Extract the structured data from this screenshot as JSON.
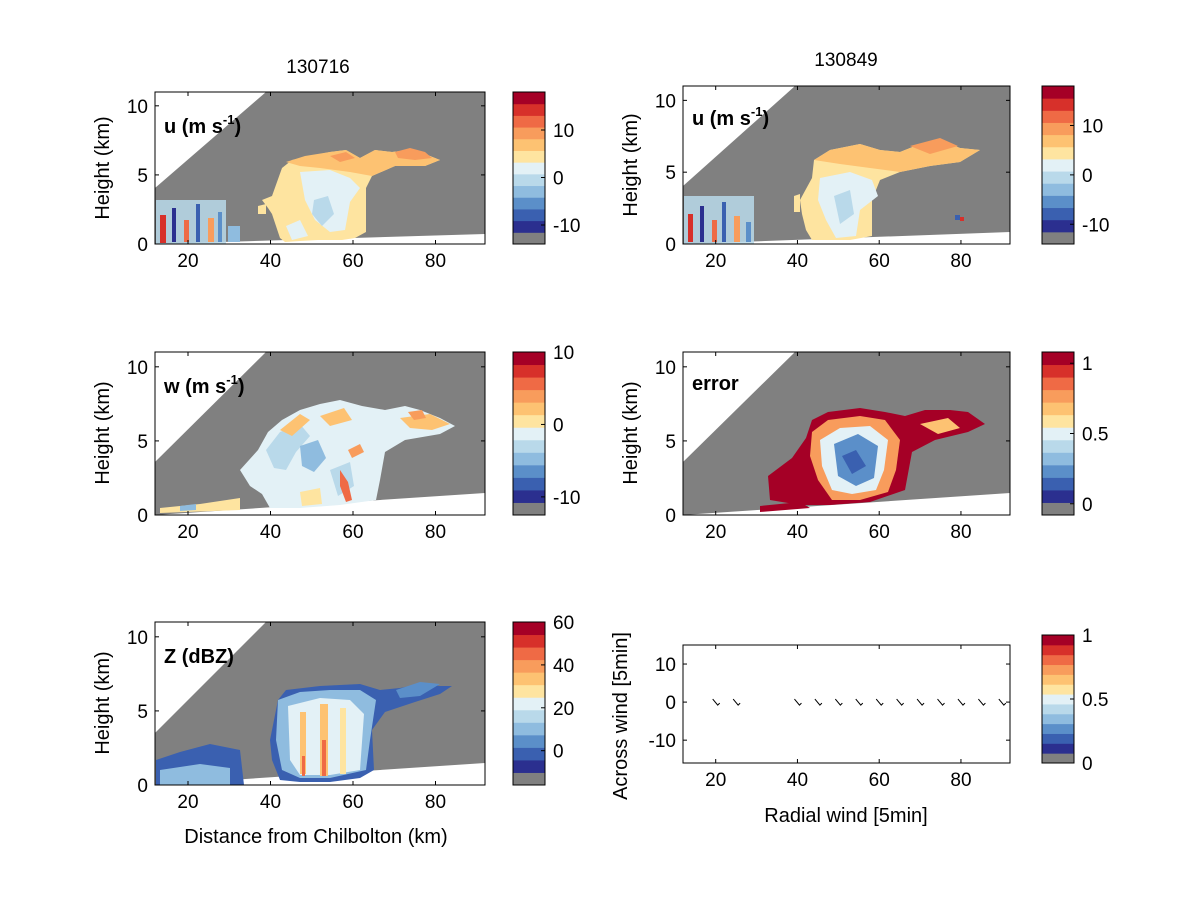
{
  "figure": {
    "titles": [
      "130716",
      "130849"
    ],
    "ylabel_height": "Height (km)",
    "xlabel_distance": "Distance from Chilbolton (km)",
    "panel_labels": {
      "u_prefix": "u (m s",
      "u_exp": "-1",
      "u_suffix": ")",
      "w_prefix": "w (m s",
      "w_exp": "-1",
      "w_suffix": ")",
      "error": "error",
      "z": "Z (dBZ)"
    }
  },
  "colors": {
    "missing_gray": "#808080",
    "colorbar": [
      "#2b2f8f",
      "#3a60b0",
      "#5b8fc9",
      "#8fbcdf",
      "#b9d9ea",
      "#e3f1f6",
      "#fee4a0",
      "#fdc272",
      "#f89c5c",
      "#ef6a45",
      "#d7302a",
      "#a50026"
    ]
  },
  "chart_data": [
    {
      "type": "heatmap",
      "id": "u_130716",
      "title": "130716",
      "ylabel": "Height (km)",
      "xlim": [
        12,
        92
      ],
      "ylim": [
        0,
        11
      ],
      "xticks": [
        20,
        40,
        60,
        80
      ],
      "yticks": [
        0,
        5,
        10
      ],
      "colorbar": {
        "ticks": [
          -10,
          0,
          10
        ],
        "range": [
          -14,
          18
        ],
        "has_missing_band": true
      }
    },
    {
      "type": "heatmap",
      "id": "u_130849",
      "title": "130849",
      "ylabel": "Height (km)",
      "xlim": [
        12,
        92
      ],
      "ylim": [
        0,
        11
      ],
      "xticks": [
        20,
        40,
        60,
        80
      ],
      "yticks": [
        0,
        5,
        10
      ],
      "colorbar": {
        "ticks": [
          -10,
          0,
          10
        ],
        "range": [
          -14,
          18
        ],
        "has_missing_band": true
      }
    },
    {
      "type": "heatmap",
      "id": "w_130716",
      "ylabel": "Height (km)",
      "xlim": [
        12,
        92
      ],
      "ylim": [
        0,
        11
      ],
      "xticks": [
        20,
        40,
        60,
        80
      ],
      "yticks": [
        0,
        5,
        10
      ],
      "colorbar": {
        "ticks": [
          -10,
          0,
          10
        ],
        "range": [
          -12.5,
          10
        ],
        "has_missing_band": true
      }
    },
    {
      "type": "heatmap",
      "id": "error_130849",
      "ylabel": "Height (km)",
      "xlim": [
        12,
        92
      ],
      "ylim": [
        0,
        11
      ],
      "xticks": [
        20,
        40,
        60,
        80
      ],
      "yticks": [
        0,
        5,
        10
      ],
      "colorbar": {
        "ticks": [
          0,
          0.5,
          1
        ],
        "range": [
          -0.08,
          1.08
        ],
        "has_missing_band": true
      }
    },
    {
      "type": "heatmap",
      "id": "z_130716",
      "ylabel": "Height (km)",
      "xlabel": "Distance from Chilbolton (km)",
      "xlim": [
        12,
        92
      ],
      "ylim": [
        0,
        11
      ],
      "xticks": [
        20,
        40,
        60,
        80
      ],
      "yticks": [
        0,
        5,
        10
      ],
      "colorbar": {
        "ticks": [
          0,
          20,
          40,
          60
        ],
        "range": [
          -16,
          60
        ],
        "has_missing_band": true
      }
    },
    {
      "type": "scatter",
      "id": "wind_vectors",
      "xlabel": "Radial wind [5min]",
      "ylabel": "Across wind [5min]",
      "xlim": [
        12,
        92
      ],
      "ylim": [
        -16,
        15
      ],
      "xticks": [
        20,
        40,
        60,
        80
      ],
      "yticks": [
        -10,
        0,
        10
      ],
      "x": [
        20,
        25,
        40,
        45,
        50,
        55,
        60,
        65,
        70,
        75,
        80,
        85,
        90
      ],
      "y": [
        0,
        0,
        0,
        0,
        0,
        0,
        0,
        0,
        0,
        0,
        0,
        0,
        0
      ],
      "colorbar": {
        "ticks": [
          0,
          0.5,
          1
        ],
        "range": [
          0,
          1
        ],
        "has_missing_band": true
      }
    }
  ]
}
